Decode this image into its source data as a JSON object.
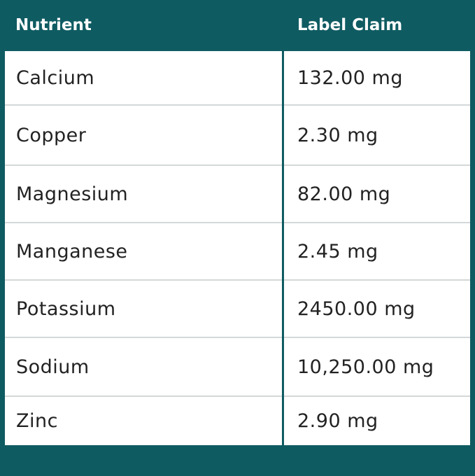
{
  "table": {
    "header": [
      "Nutrient",
      "Label Claim"
    ],
    "rows": [
      [
        "Calcium",
        "132.00 mg"
      ],
      [
        "Copper",
        "2.30 mg"
      ],
      [
        "Magnesium",
        "82.00 mg"
      ],
      [
        "Manganese",
        "2.45 mg"
      ],
      [
        "Potassium",
        "2450.00 mg"
      ],
      [
        "Sodium",
        "10,250.00 mg"
      ],
      [
        "Zinc",
        "2.90 mg"
      ]
    ]
  }
}
